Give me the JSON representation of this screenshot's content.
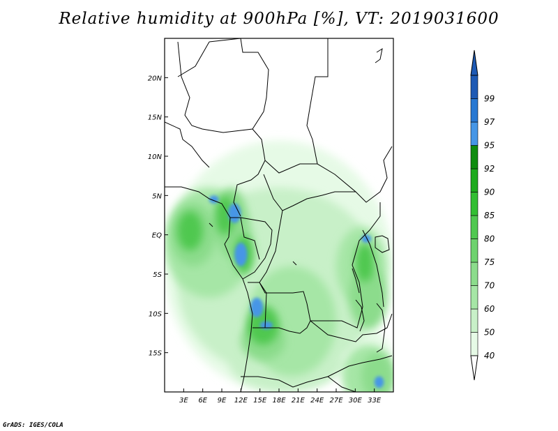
{
  "title": "Relative humidity at 900hPa [%], VT: 2019031600",
  "credit": "GrADS: IGES/COLA",
  "map": {
    "lon_range": [
      0,
      36
    ],
    "lat_range": [
      -20,
      25
    ],
    "lat_ticks": [
      {
        "value": 20,
        "label": "20N"
      },
      {
        "value": 15,
        "label": "15N"
      },
      {
        "value": 10,
        "label": "10N"
      },
      {
        "value": 5,
        "label": "5N"
      },
      {
        "value": 0,
        "label": "EQ"
      },
      {
        "value": -5,
        "label": "5S"
      },
      {
        "value": -10,
        "label": "10S"
      },
      {
        "value": -15,
        "label": "15S"
      }
    ],
    "lon_ticks": [
      {
        "value": 3,
        "label": "3E"
      },
      {
        "value": 6,
        "label": "6E"
      },
      {
        "value": 9,
        "label": "9E"
      },
      {
        "value": 12,
        "label": "12E"
      },
      {
        "value": 15,
        "label": "15E"
      },
      {
        "value": 18,
        "label": "18E"
      },
      {
        "value": 21,
        "label": "21E"
      },
      {
        "value": 24,
        "label": "24E"
      },
      {
        "value": 27,
        "label": "27E"
      },
      {
        "value": 30,
        "label": "30E"
      },
      {
        "value": 33,
        "label": "33E"
      }
    ]
  },
  "colorbar": {
    "levels": [
      "40",
      "50",
      "60",
      "70",
      "75",
      "80",
      "85",
      "90",
      "92",
      "95",
      "97",
      "99"
    ],
    "colors": [
      "#e6fae6",
      "#c8f0c8",
      "#a6e6a6",
      "#8cdc8c",
      "#6ed26e",
      "#50c850",
      "#32be32",
      "#1eaa1e",
      "#0f8c0f",
      "#4696e6",
      "#2878d2",
      "#1e5ab4"
    ]
  },
  "fields": [
    {
      "name": "rh-40-50",
      "color": "#e6fae6",
      "regions": [
        {
          "lon": 0,
          "lat": 12,
          "w": 36,
          "h": 32
        },
        {
          "lon": 27,
          "lat": -12,
          "w": 9,
          "h": 8
        }
      ]
    },
    {
      "name": "rh-50-60",
      "color": "#c8f0c8",
      "regions": [
        {
          "lon": 2,
          "lat": 6,
          "w": 32,
          "h": 24
        },
        {
          "lon": 10,
          "lat": -12,
          "w": 18,
          "h": 8
        }
      ]
    },
    {
      "name": "rh-60-70",
      "color": "#a6e6a6",
      "regions": [
        {
          "lon": 0,
          "lat": 6,
          "w": 14,
          "h": 14
        },
        {
          "lon": 13,
          "lat": -4,
          "w": 14,
          "h": 14
        },
        {
          "lon": 27,
          "lat": 1,
          "w": 8,
          "h": 10
        },
        {
          "lon": 28,
          "lat": -14,
          "w": 8,
          "h": 8
        }
      ]
    },
    {
      "name": "rh-70-80",
      "color": "#8cdc8c",
      "regions": [
        {
          "lon": 1,
          "lat": 4,
          "w": 7,
          "h": 8
        },
        {
          "lon": 8,
          "lat": 6,
          "w": 5,
          "h": 9
        },
        {
          "lon": 12,
          "lat": -11,
          "w": 7,
          "h": 5
        },
        {
          "lon": 29,
          "lat": -4,
          "w": 6,
          "h": 8
        },
        {
          "lon": 31,
          "lat": -15,
          "w": 5,
          "h": 6
        }
      ]
    },
    {
      "name": "rh-80-90",
      "color": "#50c850",
      "regions": [
        {
          "lon": 2,
          "lat": 3,
          "w": 4,
          "h": 5
        },
        {
          "lon": 8,
          "lat": 5,
          "w": 3,
          "h": 5
        },
        {
          "lon": 11,
          "lat": 0,
          "w": 3,
          "h": 5
        },
        {
          "lon": 13,
          "lat": -9,
          "w": 5,
          "h": 5
        },
        {
          "lon": 30,
          "lat": -1,
          "w": 3,
          "h": 5
        }
      ]
    },
    {
      "name": "rh-95-99",
      "color": "#4696e6",
      "regions": [
        {
          "lon": 7,
          "lat": 5,
          "w": 1.5,
          "h": 1
        },
        {
          "lon": 10,
          "lat": 4,
          "w": 2,
          "h": 2.5
        },
        {
          "lon": 11,
          "lat": -1,
          "w": 2,
          "h": 3
        },
        {
          "lon": 13.5,
          "lat": -8,
          "w": 2,
          "h": 2.5
        },
        {
          "lon": 15,
          "lat": -11,
          "w": 2,
          "h": 1
        },
        {
          "lon": 31,
          "lat": 0,
          "w": 1.5,
          "h": 1
        },
        {
          "lon": 33,
          "lat": -18,
          "w": 1.5,
          "h": 1.5
        }
      ]
    }
  ]
}
